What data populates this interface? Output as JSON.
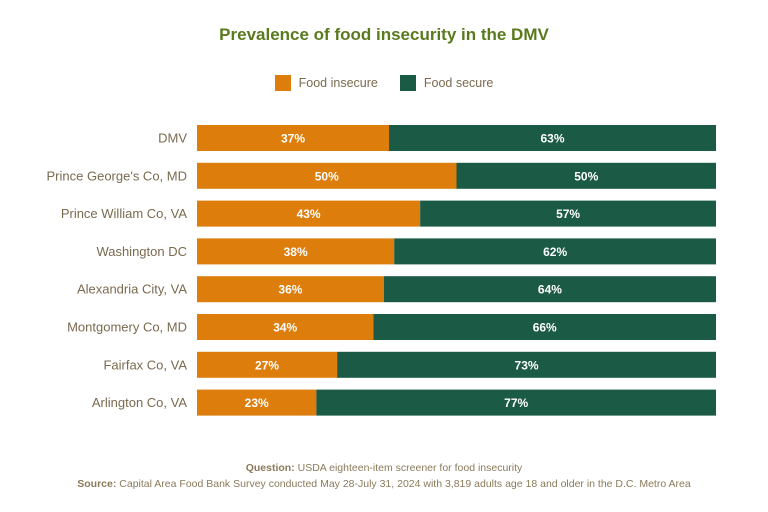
{
  "colors": {
    "insecure": "#dd7d0c",
    "secure": "#1b5a44",
    "title": "#5a7a1e",
    "label": "#7a6a4f"
  },
  "footer": {
    "question_label": "Question:",
    "question_text": "USDA eighteen-item screener for food insecurity",
    "source_label": "Source:",
    "source_text": "Capital Area Food Bank Survey conducted May 28-July 31, 2024 with 3,819 adults age 18 and older in the D.C. Metro Area"
  },
  "chart_data": {
    "type": "bar",
    "orientation": "horizontal",
    "stacked": true,
    "title": "Prevalence of food insecurity in the DMV",
    "legend_position": "top",
    "categories": [
      "DMV",
      "Prince George's Co, MD",
      "Prince William Co, VA",
      "Washington DC",
      "Alexandria City, VA",
      "Montgomery Co, MD",
      "Fairfax Co, VA",
      "Arlington Co, VA"
    ],
    "series": [
      {
        "name": "Food insecure",
        "color": "#dd7d0c",
        "values": [
          37,
          50,
          43,
          38,
          36,
          34,
          27,
          23
        ],
        "labels": [
          "37%",
          "50%",
          "43%",
          "38%",
          "36%",
          "34%",
          "27%",
          "23%"
        ]
      },
      {
        "name": "Food secure",
        "color": "#1b5a44",
        "values": [
          63,
          50,
          57,
          62,
          64,
          66,
          73,
          77
        ],
        "labels": [
          "63%",
          "50%",
          "57%",
          "62%",
          "64%",
          "66%",
          "73%",
          "77%"
        ]
      }
    ],
    "xlim": [
      0,
      100
    ],
    "grid": false
  }
}
